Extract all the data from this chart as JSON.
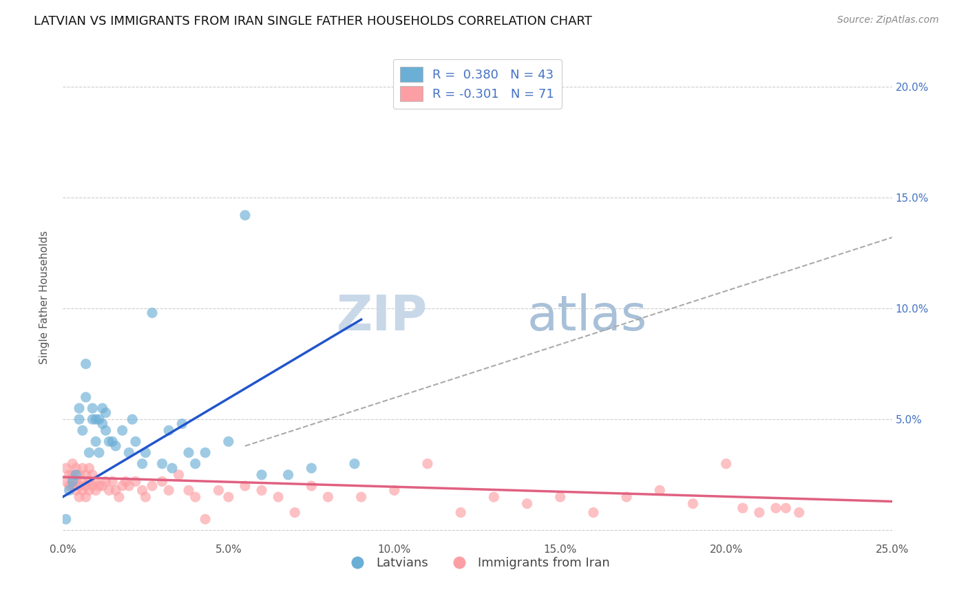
{
  "title": "LATVIAN VS IMMIGRANTS FROM IRAN SINGLE FATHER HOUSEHOLDS CORRELATION CHART",
  "source": "Source: ZipAtlas.com",
  "ylabel": "Single Father Households",
  "xlim": [
    0.0,
    0.25
  ],
  "ylim": [
    -0.005,
    0.215
  ],
  "xtick_labels": [
    "0.0%",
    "5.0%",
    "10.0%",
    "15.0%",
    "20.0%",
    "25.0%"
  ],
  "xtick_vals": [
    0.0,
    0.05,
    0.1,
    0.15,
    0.2,
    0.25
  ],
  "ytick_labels_left": [
    "",
    "5.0%",
    "10.0%",
    "15.0%",
    "20.0%"
  ],
  "ytick_vals_left": [
    0.0,
    0.05,
    0.1,
    0.15,
    0.2
  ],
  "ytick_labels_right": [
    "",
    "5.0%",
    "10.0%",
    "15.0%",
    "20.0%"
  ],
  "ytick_vals_right": [
    0.0,
    0.05,
    0.1,
    0.15,
    0.2
  ],
  "latvian_color": "#6baed6",
  "iran_color": "#fc9fa4",
  "latvian_R": 0.38,
  "latvian_N": 43,
  "iran_R": -0.301,
  "iran_N": 71,
  "watermark_zip": "ZIP",
  "watermark_atlas": "atlas",
  "legend_latvians": "Latvians",
  "legend_iran": "Immigrants from Iran",
  "latvian_scatter_x": [
    0.001,
    0.002,
    0.003,
    0.004,
    0.005,
    0.005,
    0.006,
    0.007,
    0.007,
    0.008,
    0.009,
    0.009,
    0.01,
    0.01,
    0.011,
    0.011,
    0.012,
    0.012,
    0.013,
    0.013,
    0.014,
    0.015,
    0.016,
    0.018,
    0.02,
    0.021,
    0.022,
    0.024,
    0.025,
    0.027,
    0.03,
    0.032,
    0.033,
    0.036,
    0.038,
    0.04,
    0.043,
    0.05,
    0.055,
    0.06,
    0.068,
    0.075,
    0.088
  ],
  "latvian_scatter_y": [
    0.005,
    0.018,
    0.022,
    0.025,
    0.05,
    0.055,
    0.045,
    0.06,
    0.075,
    0.035,
    0.05,
    0.055,
    0.04,
    0.05,
    0.035,
    0.05,
    0.055,
    0.048,
    0.053,
    0.045,
    0.04,
    0.04,
    0.038,
    0.045,
    0.035,
    0.05,
    0.04,
    0.03,
    0.035,
    0.098,
    0.03,
    0.045,
    0.028,
    0.048,
    0.035,
    0.03,
    0.035,
    0.04,
    0.142,
    0.025,
    0.025,
    0.028,
    0.03
  ],
  "iran_scatter_x": [
    0.001,
    0.001,
    0.002,
    0.002,
    0.003,
    0.003,
    0.003,
    0.004,
    0.004,
    0.004,
    0.005,
    0.005,
    0.005,
    0.006,
    0.006,
    0.006,
    0.007,
    0.007,
    0.007,
    0.008,
    0.008,
    0.008,
    0.009,
    0.009,
    0.01,
    0.01,
    0.011,
    0.012,
    0.013,
    0.014,
    0.015,
    0.016,
    0.017,
    0.018,
    0.019,
    0.02,
    0.022,
    0.024,
    0.025,
    0.027,
    0.03,
    0.032,
    0.035,
    0.038,
    0.04,
    0.043,
    0.047,
    0.05,
    0.055,
    0.06,
    0.065,
    0.07,
    0.075,
    0.08,
    0.09,
    0.1,
    0.11,
    0.12,
    0.13,
    0.14,
    0.15,
    0.16,
    0.17,
    0.18,
    0.19,
    0.2,
    0.205,
    0.21,
    0.215,
    0.218,
    0.222
  ],
  "iran_scatter_y": [
    0.022,
    0.028,
    0.02,
    0.025,
    0.02,
    0.025,
    0.03,
    0.018,
    0.022,
    0.028,
    0.015,
    0.02,
    0.025,
    0.018,
    0.022,
    0.028,
    0.015,
    0.02,
    0.025,
    0.018,
    0.022,
    0.028,
    0.02,
    0.025,
    0.018,
    0.022,
    0.02,
    0.02,
    0.022,
    0.018,
    0.022,
    0.018,
    0.015,
    0.02,
    0.022,
    0.02,
    0.022,
    0.018,
    0.015,
    0.02,
    0.022,
    0.018,
    0.025,
    0.018,
    0.015,
    0.005,
    0.018,
    0.015,
    0.02,
    0.018,
    0.015,
    0.008,
    0.02,
    0.015,
    0.015,
    0.018,
    0.03,
    0.008,
    0.015,
    0.012,
    0.015,
    0.008,
    0.015,
    0.018,
    0.012,
    0.03,
    0.01,
    0.008,
    0.01,
    0.01,
    0.008
  ],
  "latvian_trendline_x": [
    0.0,
    0.09
  ],
  "latvian_trendline_y": [
    0.015,
    0.095
  ],
  "iran_trendline_x": [
    0.0,
    0.25
  ],
  "iran_trendline_y": [
    0.024,
    0.013
  ],
  "dashed_trendline_x": [
    0.055,
    0.25
  ],
  "dashed_trendline_y": [
    0.038,
    0.132
  ],
  "background_color": "#ffffff",
  "grid_color": "#cccccc",
  "title_fontsize": 13,
  "axis_label_fontsize": 11,
  "tick_fontsize": 11,
  "watermark_fontsize_zip": 52,
  "watermark_fontsize_atlas": 52,
  "watermark_color_zip": "#c8d8e8",
  "watermark_color_atlas": "#a8c0d8",
  "right_tick_color": "#4472c4",
  "trendline_blue_color": "#2255cc",
  "trendline_pink_color": "#e06080"
}
